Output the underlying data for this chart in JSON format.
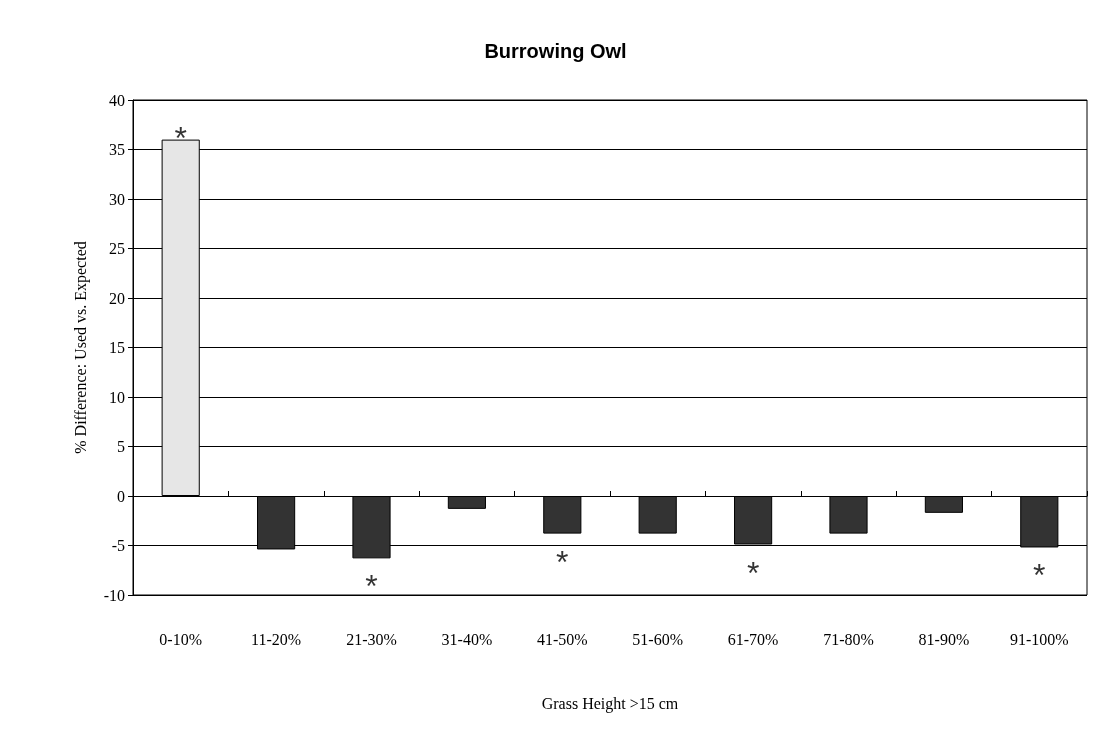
{
  "chart_data": {
    "type": "bar",
    "title": "Burrowing Owl",
    "xlabel": "Grass Height >15 cm",
    "ylabel": "% Difference: Used vs. Expected",
    "categories": [
      "0-10%",
      "11-20%",
      "21-30%",
      "31-40%",
      "41-50%",
      "51-60%",
      "61-70%",
      "71-80%",
      "81-90%",
      "91-100%"
    ],
    "values": [
      36,
      -5.4,
      -6.3,
      -1.3,
      -3.8,
      -3.8,
      -4.9,
      -3.8,
      -1.7,
      -5.2
    ],
    "colors": [
      "#e6e6e6",
      "#333333",
      "#333333",
      "#333333",
      "#333333",
      "#333333",
      "#333333",
      "#333333",
      "#333333",
      "#333333"
    ],
    "ylim": [
      -10,
      40
    ],
    "yticks": [
      -10,
      -5,
      0,
      5,
      10,
      15,
      20,
      25,
      30,
      35,
      40
    ],
    "grid": "y",
    "annotations": [
      {
        "text": "*",
        "x": "0-10%",
        "y": 36
      },
      {
        "text": "*",
        "x": "21-30%",
        "y": -6.3
      },
      {
        "text": "*",
        "x": "41-50%",
        "y": -3.8
      },
      {
        "text": "*",
        "x": "61-70%",
        "y": -4.9
      },
      {
        "text": "*",
        "x": "91-100%",
        "y": -5.2
      }
    ]
  }
}
